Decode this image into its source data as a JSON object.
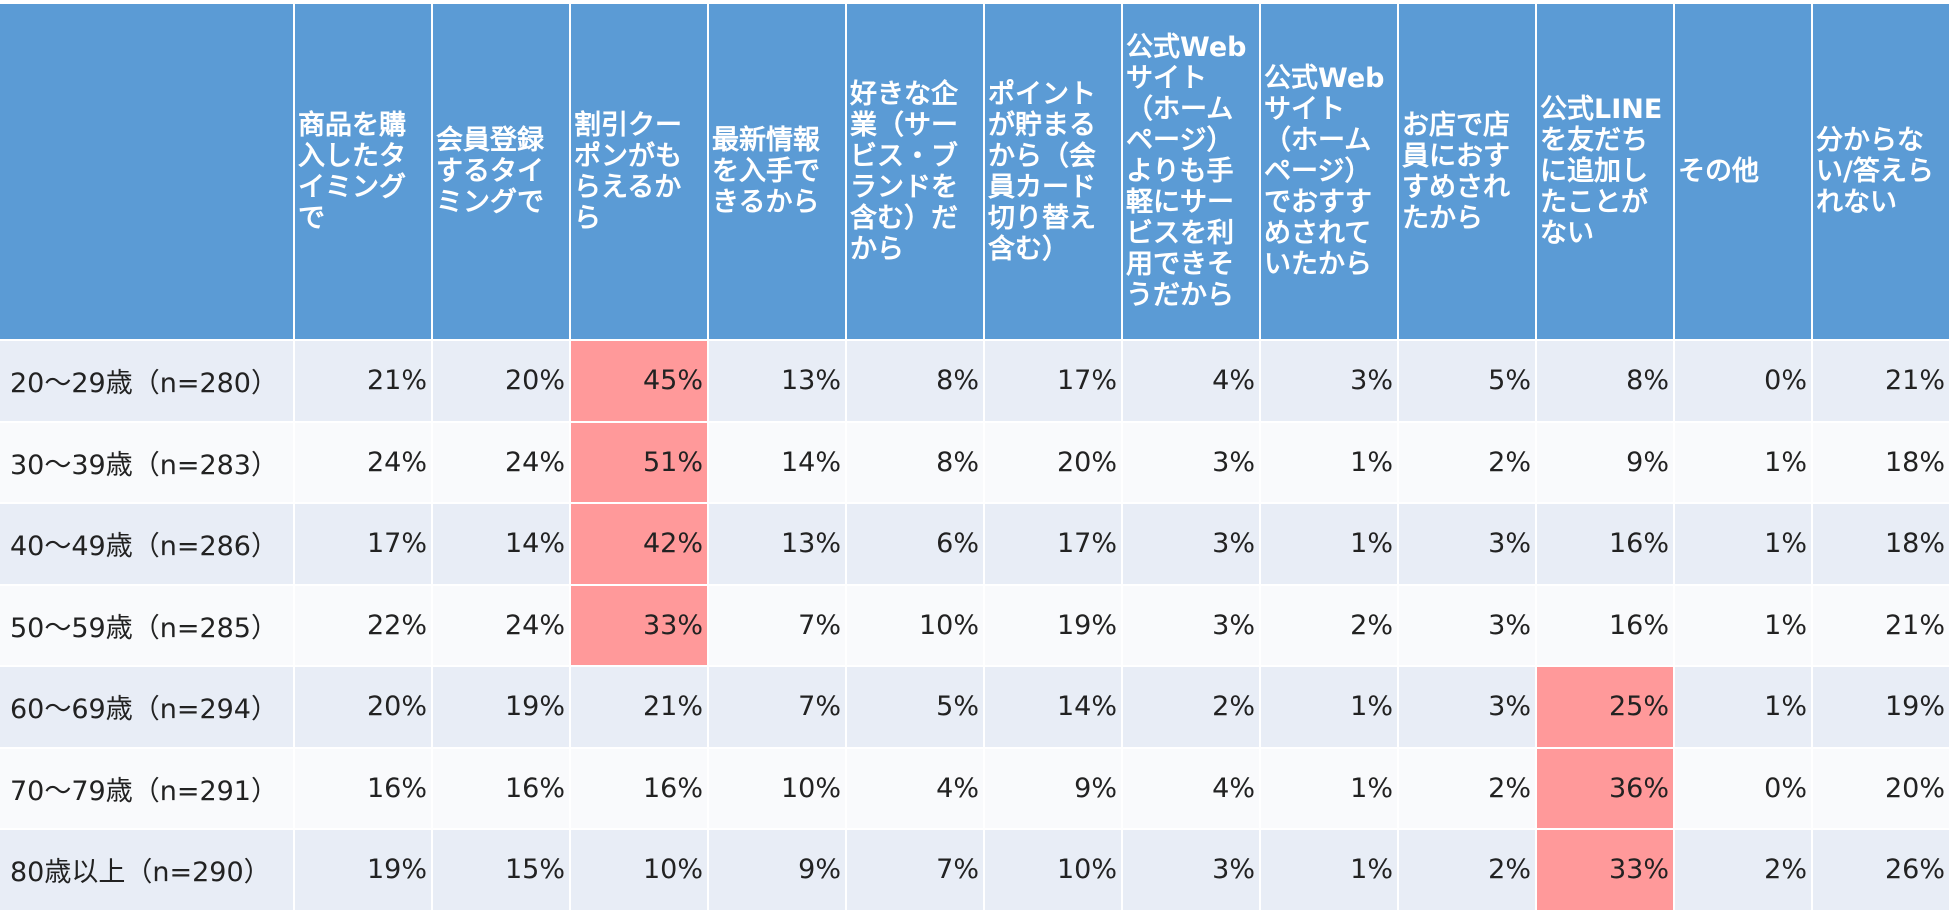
{
  "colors": {
    "header_bg": "#5b9bd5",
    "header_text": "#ffffff",
    "row_band_light_blue": "#e8edf6",
    "row_band_white": "#f9fafc",
    "highlight": "#ff999a"
  },
  "chart_data": {
    "type": "table",
    "corner_label": "",
    "columns": [
      "商品を購入したタイミングで",
      "会員登録するタイミングで",
      "割引クーポンがもらえるから",
      "最新情報を入手できるから",
      "好きな企業（サービス・ブランドを含む）だから",
      "ポイントが貯まるから（会員カード切り替え含む）",
      "公式Webサイト（ホームページ）よりも手軽にサービスを利用できそうだから",
      "公式Webサイト（ホームページ）でおすすめされていたから",
      "お店で店員におすすめされたから",
      "公式LINEを友だちに追加したことがない",
      "その他",
      "分からない/答えられない"
    ],
    "rows": [
      {
        "label": "20〜29歳（n=280）",
        "values": [
          "21%",
          "20%",
          "45%",
          "13%",
          "8%",
          "17%",
          "4%",
          "3%",
          "5%",
          "8%",
          "0%",
          "21%"
        ],
        "highlight": [
          2
        ]
      },
      {
        "label": "30〜39歳（n=283）",
        "values": [
          "24%",
          "24%",
          "51%",
          "14%",
          "8%",
          "20%",
          "3%",
          "1%",
          "2%",
          "9%",
          "1%",
          "18%"
        ],
        "highlight": [
          2
        ]
      },
      {
        "label": "40〜49歳（n=286）",
        "values": [
          "17%",
          "14%",
          "42%",
          "13%",
          "6%",
          "17%",
          "3%",
          "1%",
          "3%",
          "16%",
          "1%",
          "18%"
        ],
        "highlight": [
          2
        ]
      },
      {
        "label": "50〜59歳（n=285）",
        "values": [
          "22%",
          "24%",
          "33%",
          "7%",
          "10%",
          "19%",
          "3%",
          "2%",
          "3%",
          "16%",
          "1%",
          "21%"
        ],
        "highlight": [
          2
        ]
      },
      {
        "label": "60〜69歳（n=294）",
        "values": [
          "20%",
          "19%",
          "21%",
          "7%",
          "5%",
          "14%",
          "2%",
          "1%",
          "3%",
          "25%",
          "1%",
          "19%"
        ],
        "highlight": [
          9
        ]
      },
      {
        "label": "70〜79歳（n=291）",
        "values": [
          "16%",
          "16%",
          "16%",
          "10%",
          "4%",
          "9%",
          "4%",
          "1%",
          "2%",
          "36%",
          "0%",
          "20%"
        ],
        "highlight": [
          9
        ]
      },
      {
        "label": "80歳以上（n=290）",
        "values": [
          "19%",
          "15%",
          "10%",
          "9%",
          "7%",
          "10%",
          "3%",
          "1%",
          "2%",
          "33%",
          "2%",
          "26%"
        ],
        "highlight": [
          9
        ]
      }
    ]
  }
}
